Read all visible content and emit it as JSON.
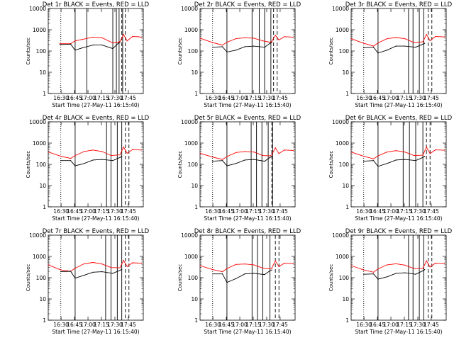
{
  "figure": {
    "ylabel": "Counts/sec",
    "xlabel": "Start Time (27-May-11 16:15:40)",
    "x_ticks": [
      "16:30",
      "16:45",
      "17:00",
      "17:15",
      "17:30",
      "17:45"
    ]
  },
  "chart_data": [
    {
      "type": "line",
      "title": "Det 1r BLACK = Events, RED = LLD",
      "xlabel": "Start Time (27-May-11 16:15:40)",
      "ylabel": "Counts/sec",
      "log_y": true,
      "ylim": [
        1,
        10000
      ],
      "xlim_minutes": [
        0,
        106
      ],
      "x_ticks": [
        "16:30",
        "16:45",
        "17:00",
        "17:15",
        "17:30",
        "17:45"
      ],
      "y_ticks": [
        "1",
        "10",
        "100",
        "1000",
        "10000"
      ],
      "solid_vlines_min": [
        30,
        43,
        72,
        76,
        79,
        83
      ],
      "dotted_vlines_min": [
        14
      ],
      "dashed_vlines_min": [
        82,
        86
      ],
      "series": [
        {
          "color": "#ff0000",
          "x": [
            13,
            25,
            30,
            38,
            50,
            60,
            72,
            78,
            80,
            84,
            88,
            94,
            100,
            104
          ],
          "y": [
            220,
            220,
            300,
            350,
            450,
            420,
            240,
            260,
            280,
            600,
            300,
            480,
            470,
            450
          ]
        },
        {
          "color": "#000000",
          "x": [
            13,
            25,
            30,
            38,
            50,
            60,
            72,
            78,
            80
          ],
          "y": [
            200,
            210,
            110,
            140,
            190,
            190,
            130,
            230,
            250
          ]
        }
      ]
    },
    {
      "type": "line",
      "title": "Det 2r BLACK = Events, RED = LLD",
      "xlabel": "Start Time (27-May-11 16:15:40)",
      "ylabel": "Counts/sec",
      "log_y": true,
      "ylim": [
        1,
        10000
      ],
      "xlim_minutes": [
        0,
        106
      ],
      "x_ticks": [
        "16:30",
        "16:45",
        "17:00",
        "17:15",
        "17:30",
        "17:45"
      ],
      "y_ticks": [
        "1",
        "10",
        "100",
        "1000",
        "10000"
      ],
      "solid_vlines_min": [
        30,
        58,
        66,
        72,
        79
      ],
      "dotted_vlines_min": [
        14
      ],
      "dashed_vlines_min": [
        82,
        86
      ],
      "series": [
        {
          "color": "#ff0000",
          "x": [
            0,
            14,
            25,
            30,
            40,
            50,
            60,
            70,
            78,
            80,
            84,
            88,
            94,
            104
          ],
          "y": [
            400,
            250,
            190,
            260,
            380,
            420,
            400,
            300,
            260,
            280,
            550,
            330,
            470,
            450
          ]
        },
        {
          "color": "#000000",
          "x": [
            14,
            25,
            30,
            40,
            50,
            60,
            72,
            78,
            80
          ],
          "y": [
            150,
            160,
            90,
            110,
            160,
            170,
            150,
            230,
            250
          ]
        }
      ]
    },
    {
      "type": "line",
      "title": "Det 3r BLACK = Events, RED = LLD",
      "xlabel": "Start Time (27-May-11 16:15:40)",
      "ylabel": "Counts/sec",
      "log_y": true,
      "ylim": [
        1,
        10000
      ],
      "xlim_minutes": [
        0,
        106
      ],
      "x_ticks": [
        "16:30",
        "16:45",
        "17:00",
        "17:15",
        "17:30",
        "17:45"
      ],
      "y_ticks": [
        "1",
        "10",
        "100",
        "1000",
        "10000"
      ],
      "solid_vlines_min": [
        30,
        64,
        69,
        76,
        81
      ],
      "dotted_vlines_min": [
        14
      ],
      "dashed_vlines_min": [
        86,
        90
      ],
      "series": [
        {
          "color": "#ff0000",
          "x": [
            0,
            14,
            25,
            30,
            40,
            50,
            60,
            70,
            80,
            84,
            88,
            94,
            104
          ],
          "y": [
            380,
            230,
            170,
            240,
            380,
            430,
            380,
            250,
            270,
            600,
            310,
            480,
            460
          ]
        },
        {
          "color": "#000000",
          "x": [
            14,
            25,
            30,
            40,
            50,
            60,
            72,
            80,
            82
          ],
          "y": [
            140,
            150,
            80,
            110,
            170,
            170,
            150,
            210,
            230
          ]
        }
      ]
    },
    {
      "type": "line",
      "title": "Det 4r BLACK = Events, RED = LLD",
      "xlabel": "Start Time (27-May-11 16:15:40)",
      "ylabel": "Counts/sec",
      "log_y": true,
      "ylim": [
        1,
        10000
      ],
      "xlim_minutes": [
        0,
        106
      ],
      "x_ticks": [
        "16:30",
        "16:45",
        "17:00",
        "17:15",
        "17:30",
        "17:45"
      ],
      "y_ticks": [
        "1",
        "10",
        "100",
        "1000",
        "10000"
      ],
      "solid_vlines_min": [
        30,
        65,
        70,
        77,
        82
      ],
      "dotted_vlines_min": [
        14
      ],
      "dashed_vlines_min": [
        86,
        90
      ],
      "series": [
        {
          "color": "#ff0000",
          "x": [
            0,
            14,
            25,
            30,
            40,
            50,
            60,
            70,
            80,
            84,
            88,
            94,
            104
          ],
          "y": [
            380,
            240,
            190,
            260,
            400,
            470,
            400,
            260,
            280,
            650,
            330,
            490,
            470
          ]
        },
        {
          "color": "#000000",
          "x": [
            14,
            25,
            30,
            40,
            50,
            60,
            72,
            80,
            82
          ],
          "y": [
            150,
            150,
            85,
            110,
            160,
            170,
            150,
            210,
            240
          ]
        }
      ]
    },
    {
      "type": "line",
      "title": "Det 5r BLACK = Events, RED = LLD",
      "xlabel": "Start Time (27-May-11 16:15:40)",
      "ylabel": "Counts/sec",
      "log_y": true,
      "ylim": [
        1,
        10000
      ],
      "xlim_minutes": [
        0,
        106
      ],
      "x_ticks": [
        "16:30",
        "16:45",
        "17:00",
        "17:15",
        "17:30",
        "17:45"
      ],
      "y_ticks": [
        "1",
        "10",
        "100",
        "1000",
        "10000"
      ],
      "solid_vlines_min": [
        30,
        57,
        63,
        69,
        76,
        81
      ],
      "dotted_vlines_min": [
        14
      ],
      "dashed_vlines_min": [
        80
      ],
      "series": [
        {
          "color": "#ff0000",
          "x": [
            0,
            14,
            25,
            30,
            40,
            50,
            60,
            70,
            78,
            80,
            84,
            88,
            94,
            104
          ],
          "y": [
            330,
            220,
            170,
            230,
            360,
            400,
            380,
            260,
            250,
            280,
            600,
            320,
            470,
            450
          ]
        },
        {
          "color": "#000000",
          "x": [
            14,
            25,
            30,
            40,
            50,
            60,
            72,
            78,
            80
          ],
          "y": [
            140,
            150,
            85,
            110,
            160,
            170,
            140,
            210,
            240
          ]
        }
      ]
    },
    {
      "type": "line",
      "title": "Det 6r BLACK = Events, RED = LLD",
      "xlabel": "Start Time (27-May-11 16:15:40)",
      "ylabel": "Counts/sec",
      "log_y": true,
      "ylim": [
        1,
        10000
      ],
      "xlim_minutes": [
        0,
        106
      ],
      "x_ticks": [
        "16:30",
        "16:45",
        "17:00",
        "17:15",
        "17:30",
        "17:45"
      ],
      "y_ticks": [
        "1",
        "10",
        "100",
        "1000",
        "10000"
      ],
      "solid_vlines_min": [
        30,
        58,
        65,
        72,
        80
      ],
      "dotted_vlines_min": [
        14
      ],
      "dashed_vlines_min": [
        84,
        88
      ],
      "series": [
        {
          "color": "#ff0000",
          "x": [
            0,
            14,
            25,
            30,
            40,
            50,
            60,
            70,
            80,
            84,
            88,
            94,
            104
          ],
          "y": [
            380,
            240,
            180,
            250,
            380,
            440,
            380,
            260,
            270,
            650,
            320,
            480,
            460
          ]
        },
        {
          "color": "#000000",
          "x": [
            14,
            25,
            30,
            40,
            50,
            60,
            72,
            80,
            82
          ],
          "y": [
            140,
            150,
            80,
            110,
            160,
            170,
            150,
            210,
            240
          ]
        }
      ]
    },
    {
      "type": "line",
      "title": "Det 7r BLACK = Events, RED = LLD",
      "xlabel": "Start Time (27-May-11 16:15:40)",
      "ylabel": "Counts/sec",
      "log_y": true,
      "ylim": [
        1,
        10000
      ],
      "xlim_minutes": [
        0,
        106
      ],
      "x_ticks": [
        "16:30",
        "16:45",
        "17:00",
        "17:15",
        "17:30",
        "17:45"
      ],
      "y_ticks": [
        "1",
        "10",
        "100",
        "1000",
        "10000"
      ],
      "solid_vlines_min": [
        30,
        64,
        70,
        77,
        82
      ],
      "dotted_vlines_min": [
        14
      ],
      "dashed_vlines_min": [
        86,
        90
      ],
      "series": [
        {
          "color": "#ff0000",
          "x": [
            0,
            14,
            25,
            30,
            40,
            50,
            60,
            70,
            80,
            84,
            88,
            94,
            104
          ],
          "y": [
            400,
            230,
            200,
            280,
            450,
            520,
            440,
            300,
            290,
            650,
            340,
            500,
            480
          ]
        },
        {
          "color": "#000000",
          "x": [
            14,
            25,
            30,
            40,
            50,
            60,
            72,
            80,
            82
          ],
          "y": [
            190,
            200,
            95,
            130,
            180,
            190,
            160,
            220,
            250
          ]
        }
      ]
    },
    {
      "type": "line",
      "title": "Det 8r BLACK = Events, RED = LLD",
      "xlabel": "Start Time (27-May-11 16:15:40)",
      "ylabel": "Counts/sec",
      "log_y": true,
      "ylim": [
        1,
        10000
      ],
      "xlim_minutes": [
        0,
        106
      ],
      "x_ticks": [
        "16:30",
        "16:45",
        "17:00",
        "17:15",
        "17:30",
        "17:45"
      ],
      "y_ticks": [
        "1",
        "10",
        "100",
        "1000",
        "10000"
      ],
      "solid_vlines_min": [
        30,
        58,
        64,
        70,
        78
      ],
      "dotted_vlines_min": [
        14
      ],
      "dashed_vlines_min": [
        84,
        88
      ],
      "series": [
        {
          "color": "#ff0000",
          "x": [
            0,
            14,
            25,
            30,
            40,
            50,
            60,
            70,
            78,
            80,
            84,
            88,
            94,
            104
          ],
          "y": [
            370,
            240,
            190,
            270,
            420,
            440,
            400,
            280,
            260,
            280,
            620,
            330,
            480,
            460
          ]
        },
        {
          "color": "#000000",
          "x": [
            14,
            25,
            30,
            40,
            50,
            60,
            72,
            78,
            80
          ],
          "y": [
            150,
            150,
            60,
            90,
            150,
            160,
            140,
            210,
            230
          ]
        }
      ]
    },
    {
      "type": "line",
      "title": "Det 9r BLACK = Events, RED = LLD",
      "xlabel": "Start Time (27-May-11 16:15:40)",
      "ylabel": "Counts/sec",
      "log_y": true,
      "ylim": [
        1,
        10000
      ],
      "xlim_minutes": [
        0,
        106
      ],
      "x_ticks": [
        "16:30",
        "16:45",
        "17:00",
        "17:15",
        "17:30",
        "17:45"
      ],
      "y_ticks": [
        "1",
        "10",
        "100",
        "1000",
        "10000"
      ],
      "solid_vlines_min": [
        30,
        64,
        69,
        76,
        81
      ],
      "dotted_vlines_min": [
        14
      ],
      "dashed_vlines_min": [
        86,
        90
      ],
      "series": [
        {
          "color": "#ff0000",
          "x": [
            0,
            14,
            25,
            30,
            40,
            50,
            60,
            70,
            80,
            84,
            88,
            94,
            104
          ],
          "y": [
            370,
            230,
            180,
            260,
            400,
            450,
            390,
            270,
            270,
            620,
            320,
            480,
            460
          ]
        },
        {
          "color": "#000000",
          "x": [
            14,
            25,
            30,
            40,
            50,
            60,
            72,
            80,
            82
          ],
          "y": [
            145,
            150,
            85,
            110,
            160,
            170,
            145,
            210,
            240
          ]
        }
      ]
    }
  ]
}
